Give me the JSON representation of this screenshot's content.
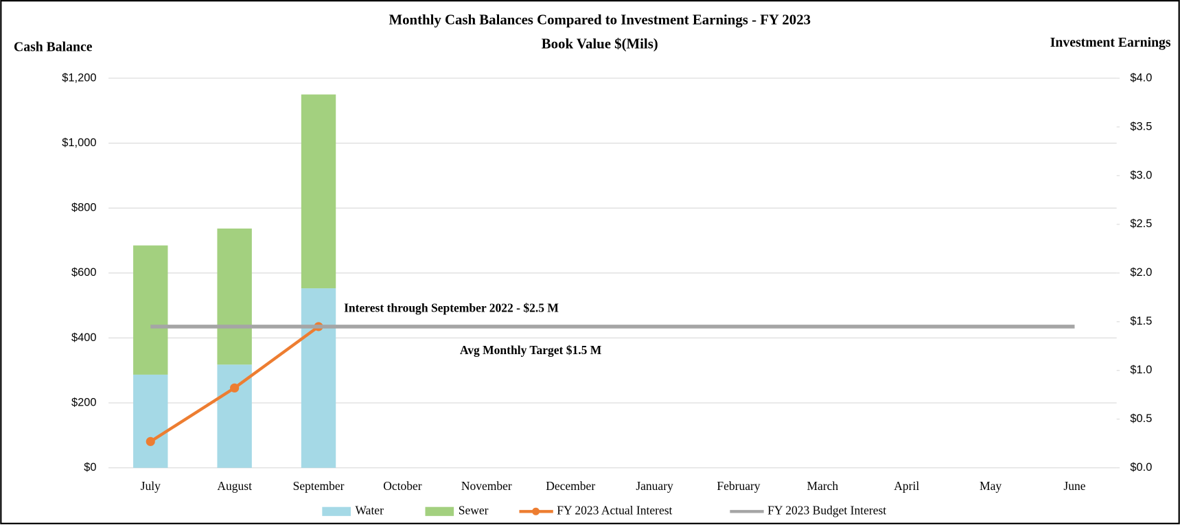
{
  "chart_data": {
    "type": "combo",
    "title": "Monthly Cash Balances Compared to Investment Earnings - FY 2023",
    "subtitle": "Book Value $(Mils)",
    "y_label": "Cash Balance",
    "y2_label": "Investment  Earnings",
    "categories": [
      "July",
      "August",
      "September",
      "October",
      "November",
      "December",
      "January",
      "February",
      "March",
      "April",
      "May",
      "June"
    ],
    "series": [
      {
        "name": "Water",
        "type": "bar",
        "color": "#a5d9e6",
        "values": [
          287,
          318,
          553,
          null,
          null,
          null,
          null,
          null,
          null,
          null,
          null,
          null
        ]
      },
      {
        "name": "Sewer",
        "type": "bar",
        "color": "#a3d07f",
        "values": [
          398,
          419,
          597,
          null,
          null,
          null,
          null,
          null,
          null,
          null,
          null,
          null
        ]
      },
      {
        "name": "FY 2023 Actual Interest",
        "type": "line",
        "axis": "y2",
        "color": "#ed7d31",
        "values": [
          0.27,
          0.82,
          1.45,
          null,
          null,
          null,
          null,
          null,
          null,
          null,
          null,
          null
        ]
      },
      {
        "name": "FY 2023 Budget Interest",
        "type": "line",
        "axis": "y2",
        "color": "#a5a5a5",
        "values": [
          1.45,
          1.45,
          1.45,
          1.45,
          1.45,
          1.45,
          1.45,
          1.45,
          1.45,
          1.45,
          1.45,
          1.45
        ]
      }
    ],
    "ylim": [
      0,
      1200
    ],
    "yticks": [
      {
        "value": 0,
        "label": "$0"
      },
      {
        "value": 200,
        "label": "$200"
      },
      {
        "value": 400,
        "label": "$400"
      },
      {
        "value": 600,
        "label": "$600"
      },
      {
        "value": 800,
        "label": "$800"
      },
      {
        "value": 1000,
        "label": "$1,000"
      },
      {
        "value": 1200,
        "label": "$1,200"
      }
    ],
    "y2lim": [
      0,
      4
    ],
    "y2ticks": [
      {
        "value": 0,
        "label": "$0.0"
      },
      {
        "value": 0.5,
        "label": "$0.5"
      },
      {
        "value": 1,
        "label": "$1.0"
      },
      {
        "value": 1.5,
        "label": "$1.5"
      },
      {
        "value": 2,
        "label": "$2.0"
      },
      {
        "value": 2.5,
        "label": "$2.5"
      },
      {
        "value": 3,
        "label": "$3.0"
      },
      {
        "value": 3.5,
        "label": "$3.5"
      },
      {
        "value": 4,
        "label": "$4.0"
      }
    ],
    "grid": true,
    "legend": "bottom",
    "annotations": [
      "Interest through September 2022 - $2.5 M",
      "Avg Monthly Target $1.5 M"
    ]
  }
}
